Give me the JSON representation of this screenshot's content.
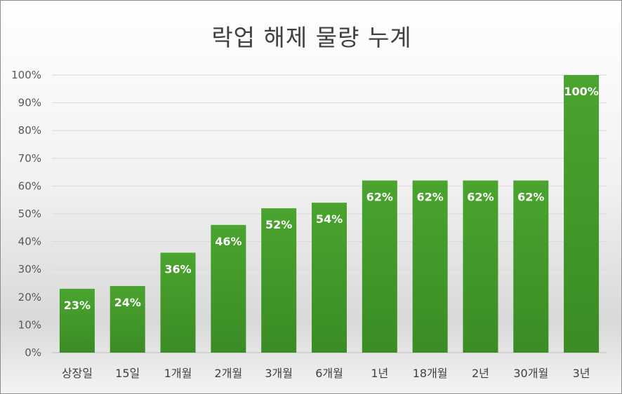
{
  "chart_data": {
    "type": "bar",
    "title": "락업 해제 물량 누계",
    "categories": [
      "상장일",
      "15일",
      "1개월",
      "2개월",
      "3개월",
      "6개월",
      "1년",
      "18개월",
      "2년",
      "30개월",
      "3년"
    ],
    "values": [
      23,
      24,
      36,
      46,
      52,
      54,
      62,
      62,
      62,
      62,
      100
    ],
    "data_labels": [
      "23%",
      "24%",
      "36%",
      "46%",
      "52%",
      "54%",
      "62%",
      "62%",
      "62%",
      "62%",
      "100%"
    ],
    "y_ticks": [
      "0%",
      "10%",
      "20%",
      "30%",
      "40%",
      "50%",
      "60%",
      "70%",
      "80%",
      "90%",
      "100%"
    ],
    "ylim": [
      0,
      100
    ],
    "grid": true,
    "legend": "none",
    "bar_color_top": "#4aa42e",
    "bar_color_bottom": "#3a8c24"
  }
}
